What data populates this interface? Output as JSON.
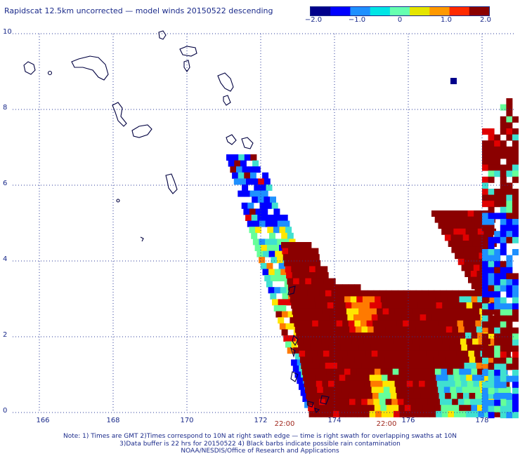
{
  "title": "Rapidscat 12.5km uncorrected — model winds 20150522 descending",
  "colorbar": {
    "ticks": [
      "−2.0",
      "−1.0",
      "0",
      "1.0",
      "2.0"
    ],
    "tick_values": [
      -2.0,
      -1.0,
      0,
      1.0,
      2.0
    ],
    "colors": [
      "#00008b",
      "#0000ff",
      "#1e90ff",
      "#00e5e5",
      "#66ffb0",
      "#e5e500",
      "#ff9900",
      "#ff2a00",
      "#8b0000"
    ]
  },
  "axes": {
    "lon_ticks": [
      "166",
      "168",
      "170",
      "172",
      "174",
      "176",
      "178"
    ],
    "lat_ticks": [
      "0",
      "2",
      "4",
      "6",
      "8",
      "10"
    ],
    "lon_range": [
      165.1,
      179.2
    ],
    "lat_range": [
      0,
      10
    ]
  },
  "times": [
    {
      "label": "22:00",
      "lon": 172.7
    },
    {
      "label": "22:00",
      "lon": 175.5
    }
  ],
  "notes": [
    "Note: 1) Times are GMT 2)Times correspond to 10N at right swath edge — time is right swath for overlapping swaths at 10N",
    "3)Data buffer is 22 hrs for 20150522 4) Black barbs indicate possible rain contamination",
    "NOAA/NESDIS/Office of Research and Applications"
  ]
}
